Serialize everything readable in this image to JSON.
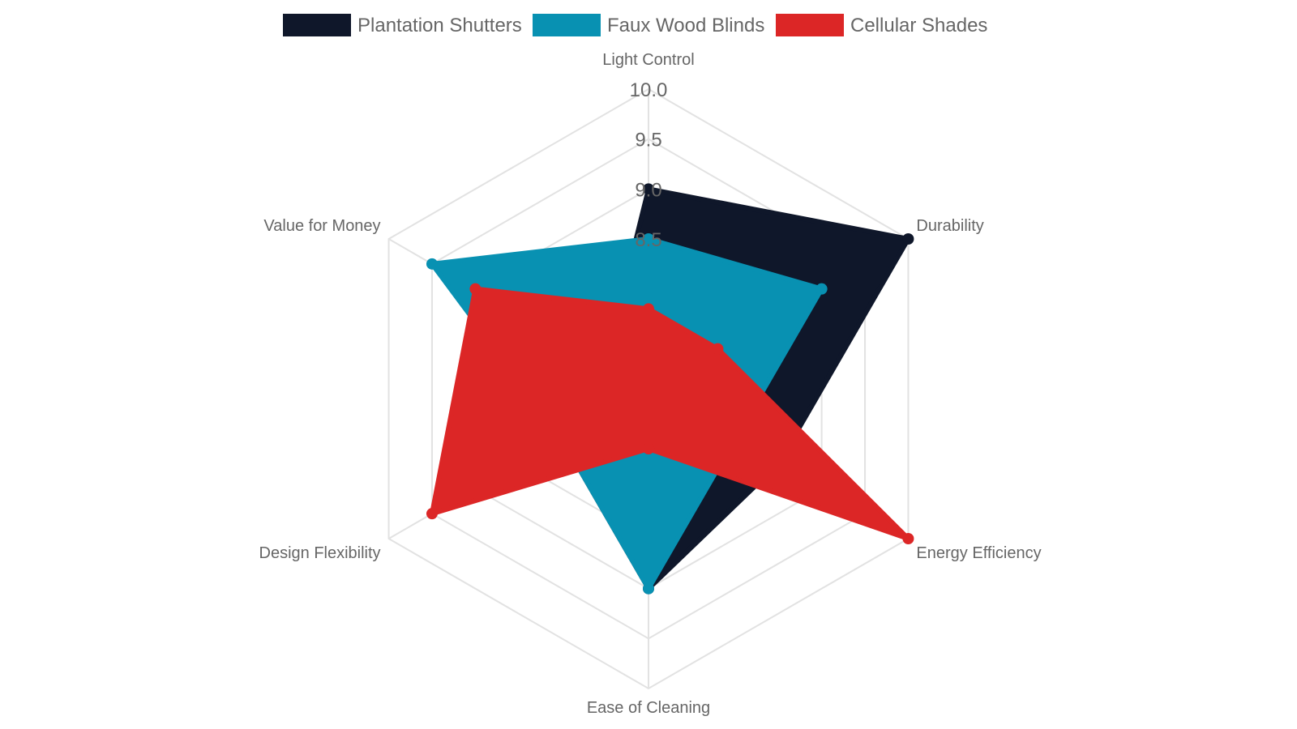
{
  "chart_data": {
    "type": "radar",
    "axes": [
      "Light Control",
      "Durability",
      "Energy Efficiency",
      "Ease of Cleaning",
      "Design Flexibility",
      "Value for Money"
    ],
    "r_range": [
      7,
      10
    ],
    "ticks": [
      "10.0",
      "9.5",
      "9.0",
      "8.5"
    ],
    "tick_values": [
      10,
      9.5,
      9,
      8.5,
      8,
      7.5
    ],
    "grid": true,
    "legend_position": "top",
    "series": [
      {
        "name": "Plantation Shutters",
        "color": "#0f172a",
        "values": [
          9.0,
          10.0,
          8.5,
          9.0,
          8.0,
          7.5
        ],
        "filled": true
      },
      {
        "name": "Faux Wood Blinds",
        "color": "#0891b2",
        "values": [
          8.5,
          9.0,
          8.0,
          9.0,
          8.0,
          9.5
        ],
        "filled": true
      },
      {
        "name": "Cellular Shades",
        "color": "#dc2626",
        "values": [
          7.8,
          7.8,
          10.0,
          7.6,
          9.5,
          9.0
        ],
        "filled": true
      }
    ]
  }
}
